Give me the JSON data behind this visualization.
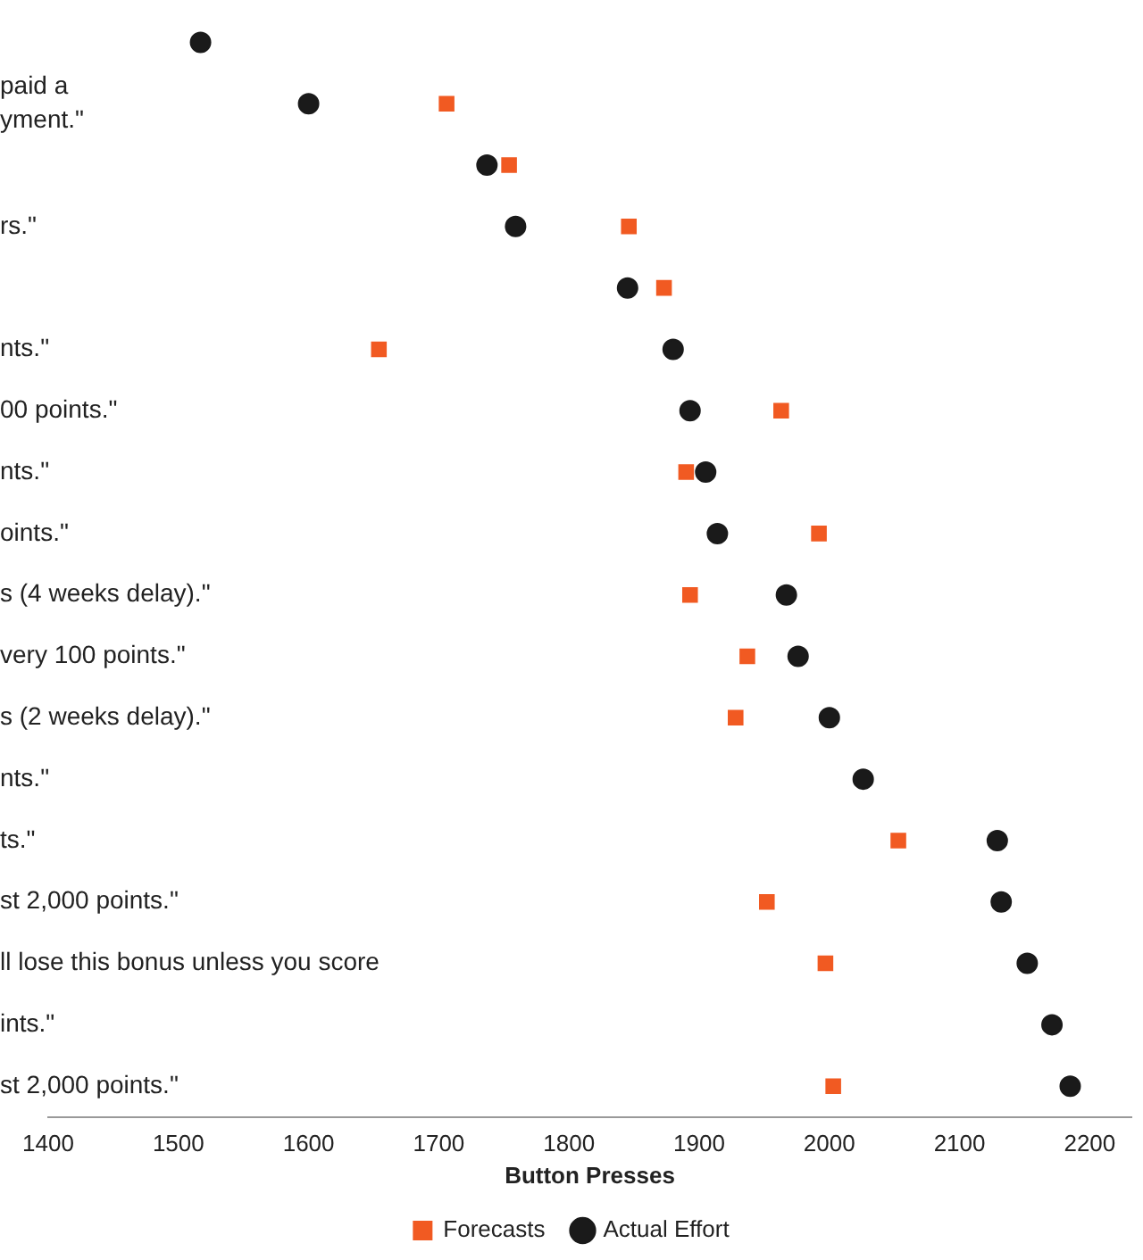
{
  "chart_data": {
    "type": "scatter",
    "orientation": "horizontal",
    "xlabel": "Button Presses",
    "legend": "bottom",
    "grid": false,
    "categories": [
      null,
      "paid a\nyment.\"",
      null,
      "rs.\"",
      null,
      "nts.\"",
      "00 points.\"",
      "nts.\"",
      "oints.\"",
      "s (4 weeks delay).\"",
      "very 100 points.\"",
      "s (2 weeks delay).\"",
      "nts.\"",
      "ts.\"",
      "st 2,000 points.\"",
      "ll lose this bonus unless you score",
      "ints.\"",
      "st 2,000 points.\""
    ],
    "xlim": [
      1400,
      2232
    ],
    "xticks": [
      1400,
      1500,
      1600,
      1700,
      1800,
      1900,
      2000,
      2100,
      2200
    ],
    "series": [
      {
        "name": "Forecasts",
        "color": "#f15a22",
        "marker": "square",
        "values": [
          null,
          1706,
          1754,
          1846,
          1873,
          1654,
          1963,
          1890,
          1992,
          1893,
          1937,
          1928,
          null,
          2053,
          1952,
          1997,
          null,
          2003
        ]
      },
      {
        "name": "Actual Effort",
        "color": "#1a1a1a",
        "marker": "circle",
        "values": [
          1517,
          1600,
          1737,
          1759,
          1845,
          1880,
          1893,
          1905,
          1914,
          1967,
          1976,
          2000,
          2026,
          2129,
          2132,
          2152,
          2171,
          2185
        ]
      }
    ]
  }
}
